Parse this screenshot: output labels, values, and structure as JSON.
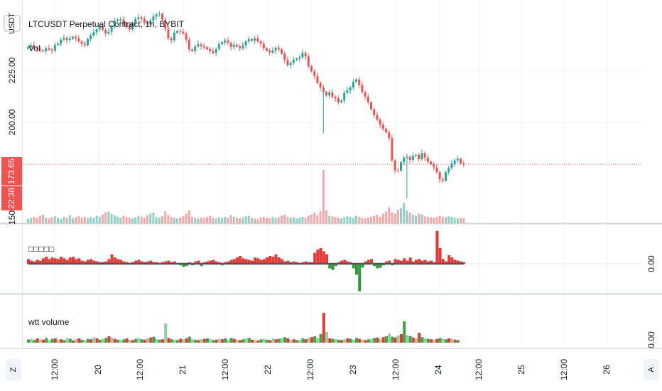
{
  "header": {
    "currency_button": "USDT",
    "symbol_title": "LTCUSDT Perpetual Contract, 1h, BYBIT",
    "volume_label": "Vol"
  },
  "price_axis": {
    "ticks": [
      "225.00",
      "200.00"
    ],
    "bottom_tick": "150",
    "current_price": "173.65",
    "countdown": "22:38"
  },
  "pane2": {
    "title": "□□□□□",
    "zero_label": "0.00"
  },
  "pane3": {
    "title": "wtt volume",
    "zero_label": "0.00"
  },
  "time_axis": {
    "labels": [
      "12:00",
      "20",
      "12:00",
      "21",
      "12:00",
      "22",
      "12:00",
      "23",
      "12:00",
      "24",
      "12:00",
      "25",
      "12:00",
      "26"
    ]
  },
  "corner_buttons": {
    "left": "Z",
    "right": "A"
  },
  "colors": {
    "up": "#26a69a",
    "down": "#ef5350",
    "up_vol": "#8fd0c6",
    "down_vol": "#f4a7a6",
    "grid": "#f0f3fa",
    "line": "#555555",
    "green_bar": "#2e9a3a",
    "red_bar": "#e53935"
  },
  "chart_data": [
    {
      "type": "candlestick",
      "title": "LTCUSDT Perpetual Contract, 1h, BYBIT",
      "ylim": [
        148,
        245
      ],
      "last_price": 173.65,
      "x_labels": [
        "12:00",
        "20",
        "12:00",
        "21",
        "12:00",
        "22",
        "12:00",
        "23",
        "12:00",
        "24"
      ],
      "close": [
        224.5,
        225.4,
        224.3,
        223.8,
        223.1,
        222.7,
        224.0,
        223.5,
        223.0,
        225.5,
        226.0,
        227.8,
        228.5,
        227.6,
        228.2,
        229.0,
        228.3,
        227.0,
        226.0,
        225.3,
        228.0,
        229.6,
        231.0,
        232.2,
        233.5,
        232.0,
        230.5,
        231.2,
        233.5,
        236.0,
        236.5,
        236.5,
        234.8,
        234.0,
        232.2,
        235.0,
        236.7,
        237.5,
        236.8,
        235.2,
        234.5,
        236.0,
        237.8,
        238.7,
        239.0,
        236.5,
        232.5,
        228.3,
        227.5,
        230.8,
        231.5,
        231.2,
        230.5,
        227.8,
        223.5,
        222.8,
        224.8,
        225.8,
        225.0,
        224.5,
        223.7,
        222.8,
        222.0,
        223.7,
        225.8,
        226.6,
        227.4,
        226.3,
        224.6,
        225.6,
        224.8,
        224.0,
        225.3,
        227.0,
        228.0,
        227.3,
        228.4,
        227.0,
        226.0,
        224.0,
        223.0,
        222.2,
        223.0,
        224.2,
        223.6,
        221.7,
        219.0,
        216.7,
        217.7,
        219.0,
        219.5,
        220.0,
        222.0,
        220.5,
        216.2,
        214.0,
        212.0,
        209.0,
        207.0,
        205.0,
        203.5,
        204.8,
        202.9,
        202.3,
        200.6,
        201.3,
        204.7,
        205.7,
        207.0,
        209.5,
        210.5,
        208.0,
        205.0,
        203.0,
        200.5,
        197.5,
        195.0,
        193.0,
        190.8,
        189.0,
        187.5,
        185.0,
        175.3,
        171.0,
        170.8,
        174.5,
        176.5,
        176.8,
        175.5,
        177.3,
        177.7,
        175.8,
        178.5,
        176.5,
        174.8,
        173.6,
        172.3,
        170.2,
        167.0,
        166.5,
        170.2,
        172.0,
        174.0,
        175.3,
        176.0,
        174.0,
        173.65
      ],
      "volume_relative": [
        0.08,
        0.1,
        0.12,
        0.1,
        0.14,
        0.16,
        0.1,
        0.09,
        0.11,
        0.13,
        0.1,
        0.08,
        0.12,
        0.1,
        0.15,
        0.09,
        0.11,
        0.13,
        0.1,
        0.12,
        0.09,
        0.11,
        0.1,
        0.14,
        0.12,
        0.16,
        0.2,
        0.22,
        0.18,
        0.15,
        0.12,
        0.1,
        0.14,
        0.12,
        0.1,
        0.09,
        0.11,
        0.14,
        0.12,
        0.1,
        0.15,
        0.18,
        0.2,
        0.12,
        0.1,
        0.13,
        0.22,
        0.15,
        0.12,
        0.1,
        0.09,
        0.11,
        0.13,
        0.18,
        0.24,
        0.12,
        0.1,
        0.09,
        0.11,
        0.1,
        0.12,
        0.14,
        0.1,
        0.09,
        0.11,
        0.1,
        0.12,
        0.1,
        0.15,
        0.12,
        0.1,
        0.09,
        0.11,
        0.13,
        0.14,
        0.1,
        0.09,
        0.08,
        0.11,
        0.12,
        0.1,
        0.09,
        0.12,
        0.1,
        0.11,
        0.14,
        0.16,
        0.12,
        0.1,
        0.11,
        0.09,
        0.1,
        0.12,
        0.1,
        0.14,
        0.16,
        0.2,
        0.15,
        0.22,
        1.0,
        0.24,
        0.14,
        0.13,
        0.12,
        0.1,
        0.09,
        0.11,
        0.13,
        0.12,
        0.1,
        0.14,
        0.12,
        0.1,
        0.09,
        0.11,
        0.12,
        0.14,
        0.16,
        0.12,
        0.18,
        0.22,
        0.3,
        0.2,
        0.18,
        0.25,
        0.28,
        0.38,
        0.24,
        0.2,
        0.16,
        0.14,
        0.18,
        0.16,
        0.13,
        0.12,
        0.11,
        0.1,
        0.12,
        0.14,
        0.12,
        0.11,
        0.13,
        0.12,
        0.1,
        0.09
      ]
    },
    {
      "type": "bar",
      "title": "□□□□□",
      "zero_label": "0.00",
      "values": [
        0.6,
        0.4,
        0.3,
        0.5,
        0.4,
        0.7,
        0.9,
        0.6,
        0.8,
        0.7,
        0.6,
        0.9,
        0.7,
        0.5,
        0.8,
        0.9,
        0.6,
        0.7,
        0.4,
        0.3,
        0.5,
        0.6,
        0.4,
        0.3,
        0.2,
        0.2,
        0.3,
        0.6,
        1.2,
        0.8,
        0.6,
        0.5,
        0.3,
        0.2,
        0.1,
        0.2,
        0.4,
        0.5,
        0.3,
        0.2,
        0.3,
        0.4,
        0.2,
        0.2,
        0.1,
        0.2,
        0.3,
        0.4,
        0.2,
        0.3,
        0.1,
        -0.2,
        -0.4,
        -0.3,
        0.2,
        -0.2,
        0.3,
        0.4,
        -0.3,
        0.2,
        0.3,
        0.4,
        0.5,
        0.3,
        0.2,
        -0.2,
        0.2,
        0.3,
        0.5,
        0.6,
        0.8,
        1.0,
        0.7,
        0.6,
        0.5,
        0.4,
        0.8,
        0.7,
        0.5,
        0.6,
        0.8,
        1.0,
        0.9,
        1.2,
        0.8,
        0.6,
        0.3,
        0.4,
        0.2,
        0.3,
        0.2,
        0.1,
        0.2,
        0.3,
        0.2,
        0.2,
        1.4,
        1.8,
        2.0,
        1.6,
        1.2,
        -0.6,
        -0.8,
        -0.3,
        0.2,
        0.4,
        0.5,
        0.3,
        0.2,
        -0.6,
        -1.4,
        -3.5,
        -0.5,
        0.3,
        0.5,
        0.6,
        -0.3,
        -0.6,
        -0.5,
        -0.2,
        0.3,
        0.4,
        -0.2,
        0.6,
        0.5,
        0.4,
        0.7,
        0.4,
        0.8,
        0.3,
        0.5,
        0.6,
        0.4,
        0.5,
        0.3,
        0.4,
        0.2,
        4.2,
        2.0,
        0.6,
        0.3,
        1.1,
        0.8,
        0.5,
        0.4,
        0.3,
        0.2
      ]
    },
    {
      "type": "bar",
      "title": "wtt volume",
      "zero_label": "0.00",
      "values": [
        0.15,
        0.18,
        0.12,
        0.2,
        0.16,
        0.14,
        0.22,
        0.12,
        0.18,
        0.2,
        0.14,
        0.16,
        0.12,
        0.22,
        0.18,
        0.1,
        0.16,
        0.2,
        0.14,
        0.12,
        0.18,
        0.16,
        0.24,
        0.2,
        0.14,
        0.18,
        0.22,
        0.3,
        0.24,
        0.18,
        0.14,
        0.12,
        0.16,
        0.2,
        0.14,
        0.12,
        0.18,
        0.22,
        0.16,
        0.14,
        0.2,
        0.24,
        0.28,
        0.18,
        0.14,
        0.16,
        0.9,
        0.22,
        0.16,
        0.14,
        0.12,
        0.18,
        0.16,
        0.2,
        0.28,
        0.16,
        0.14,
        0.12,
        0.16,
        0.18,
        0.2,
        0.16,
        0.12,
        0.14,
        0.18,
        0.16,
        0.2,
        0.14,
        0.22,
        0.18,
        0.14,
        0.12,
        0.16,
        0.2,
        0.22,
        0.14,
        0.12,
        0.1,
        0.16,
        0.18,
        0.14,
        0.12,
        0.2,
        0.16,
        0.18,
        0.22,
        0.26,
        0.2,
        0.14,
        0.16,
        0.12,
        0.14,
        0.2,
        0.16,
        0.22,
        0.26,
        0.3,
        0.22,
        0.4,
        1.4,
        0.5,
        0.2,
        0.18,
        0.16,
        0.14,
        0.12,
        0.16,
        0.2,
        0.18,
        0.14,
        0.22,
        0.18,
        0.14,
        0.12,
        0.16,
        0.18,
        0.22,
        0.24,
        0.18,
        0.26,
        0.3,
        0.42,
        0.28,
        0.24,
        0.34,
        0.4,
        1.0,
        0.36,
        0.3,
        0.24,
        0.2,
        0.46,
        0.26,
        0.2,
        0.18,
        0.16,
        0.14,
        0.18,
        0.22,
        0.18,
        0.16,
        0.2,
        0.18,
        0.14,
        0.12
      ]
    }
  ]
}
